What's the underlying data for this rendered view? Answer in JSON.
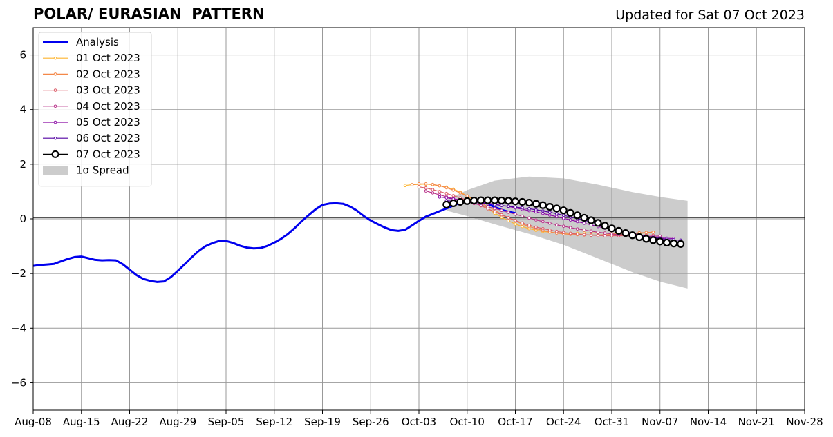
{
  "title": "POLAR/ EURASIAN  PATTERN",
  "subtitle": "Updated for Sat 07 Oct 2023",
  "chart_data": {
    "type": "line",
    "x_type": "date",
    "xlim": [
      "2023-08-08",
      "2023-11-28"
    ],
    "ylim": [
      -7,
      7
    ],
    "grid": true,
    "legend_position": "top-left",
    "x_ticks": [
      {
        "date": "2023-08-08",
        "label": "Aug-08"
      },
      {
        "date": "2023-08-15",
        "label": "Aug-15"
      },
      {
        "date": "2023-08-22",
        "label": "Aug-22"
      },
      {
        "date": "2023-08-29",
        "label": "Aug-29"
      },
      {
        "date": "2023-09-05",
        "label": "Sep-05"
      },
      {
        "date": "2023-09-12",
        "label": "Sep-12"
      },
      {
        "date": "2023-09-19",
        "label": "Sep-19"
      },
      {
        "date": "2023-09-26",
        "label": "Sep-26"
      },
      {
        "date": "2023-10-03",
        "label": "Oct-03"
      },
      {
        "date": "2023-10-10",
        "label": "Oct-10"
      },
      {
        "date": "2023-10-17",
        "label": "Oct-17"
      },
      {
        "date": "2023-10-24",
        "label": "Oct-24"
      },
      {
        "date": "2023-10-31",
        "label": "Oct-31"
      },
      {
        "date": "2023-11-07",
        "label": "Nov-07"
      },
      {
        "date": "2023-11-14",
        "label": "Nov-14"
      },
      {
        "date": "2023-11-21",
        "label": "Nov-21"
      },
      {
        "date": "2023-11-28",
        "label": "Nov-28"
      }
    ],
    "y_ticks": [
      {
        "value": 6,
        "label": "6"
      },
      {
        "value": 4,
        "label": "4"
      },
      {
        "value": 2,
        "label": "2"
      },
      {
        "value": 0,
        "label": "0"
      },
      {
        "value": -2,
        "label": "−2"
      },
      {
        "value": -4,
        "label": "−4"
      },
      {
        "value": -6,
        "label": "−6"
      }
    ],
    "series": [
      {
        "name": "Analysis",
        "color": "#0000ee",
        "style": "analysis",
        "start": "2023-08-08",
        "values": [
          -1.72,
          -1.69,
          -1.67,
          -1.65,
          -1.56,
          -1.47,
          -1.4,
          -1.38,
          -1.44,
          -1.5,
          -1.52,
          -1.51,
          -1.52,
          -1.66,
          -1.86,
          -2.06,
          -2.2,
          -2.27,
          -2.31,
          -2.29,
          -2.13,
          -1.9,
          -1.66,
          -1.41,
          -1.18,
          -1.0,
          -0.89,
          -0.81,
          -0.81,
          -0.88,
          -0.98,
          -1.05,
          -1.08,
          -1.07,
          -0.99,
          -0.87,
          -0.73,
          -0.55,
          -0.33,
          -0.08,
          0.14,
          0.35,
          0.51,
          0.56,
          0.57,
          0.55,
          0.45,
          0.3,
          0.1,
          -0.06,
          -0.19,
          -0.31,
          -0.41,
          -0.44,
          -0.4,
          -0.24,
          -0.07,
          0.08,
          0.18,
          0.28,
          0.38,
          0.49,
          0.59,
          0.66,
          0.68,
          0.64,
          0.55,
          0.43,
          0.33,
          0.26,
          0.21
        ]
      },
      {
        "name": "01 Oct 2023",
        "color": "#fdb42f",
        "style": "forecast",
        "start": "2023-10-01",
        "values": [
          1.22,
          1.25,
          1.26,
          1.27,
          1.25,
          1.21,
          1.16,
          1.09,
          0.98,
          0.84,
          0.68,
          0.52,
          0.37,
          0.21,
          0.06,
          -0.07,
          -0.19,
          -0.28,
          -0.36,
          -0.42,
          -0.46,
          -0.49,
          -0.51,
          -0.52,
          -0.53,
          -0.53,
          -0.52,
          -0.51,
          -0.51,
          -0.52,
          -0.54,
          -0.55,
          -0.56,
          -0.55,
          -0.53,
          -0.51,
          -0.49
        ]
      },
      {
        "name": "02 Oct 2023",
        "color": "#f48849",
        "style": "forecast",
        "start": "2023-10-02",
        "values": [
          1.25,
          1.28,
          1.28,
          1.26,
          1.21,
          1.14,
          1.05,
          0.95,
          0.84,
          0.72,
          0.58,
          0.45,
          0.31,
          0.17,
          0.04,
          -0.08,
          -0.19,
          -0.28,
          -0.36,
          -0.43,
          -0.48,
          -0.52,
          -0.55,
          -0.57,
          -0.58,
          -0.59,
          -0.59,
          -0.59,
          -0.58,
          -0.57,
          -0.56,
          -0.55,
          -0.53,
          -0.51,
          -0.5,
          -0.49
        ]
      },
      {
        "name": "03 Oct 2023",
        "color": "#db5c68",
        "style": "forecast",
        "start": "2023-10-03",
        "values": [
          1.17,
          1.13,
          1.07,
          1.0,
          0.93,
          0.85,
          0.77,
          0.68,
          0.58,
          0.48,
          0.37,
          0.26,
          0.15,
          0.04,
          -0.06,
          -0.15,
          -0.23,
          -0.3,
          -0.36,
          -0.41,
          -0.46,
          -0.5,
          -0.53,
          -0.56,
          -0.58,
          -0.6,
          -0.61,
          -0.62,
          -0.62,
          -0.62,
          -0.62,
          -0.61,
          -0.61,
          -0.6,
          -0.6
        ]
      },
      {
        "name": "04 Oct 2023",
        "color": "#b83289",
        "style": "forecast",
        "start": "2023-10-04",
        "values": [
          1.02,
          0.95,
          0.88,
          0.81,
          0.74,
          0.68,
          0.62,
          0.56,
          0.5,
          0.44,
          0.38,
          0.31,
          0.24,
          0.17,
          0.1,
          0.03,
          -0.04,
          -0.1,
          -0.16,
          -0.22,
          -0.27,
          -0.32,
          -0.37,
          -0.41,
          -0.45,
          -0.49,
          -0.52,
          -0.55,
          -0.58,
          -0.6,
          -0.62,
          -0.63,
          -0.64,
          -0.64,
          -0.63
        ]
      },
      {
        "name": "05 Oct 2023",
        "color": "#8b0aa5",
        "style": "forecast",
        "start": "2023-10-06",
        "values": [
          0.8,
          0.77,
          0.73,
          0.7,
          0.67,
          0.64,
          0.61,
          0.57,
          0.53,
          0.49,
          0.45,
          0.4,
          0.35,
          0.3,
          0.25,
          0.2,
          0.14,
          0.08,
          0.02,
          -0.04,
          -0.1,
          -0.16,
          -0.22,
          -0.28,
          -0.34,
          -0.4,
          -0.45,
          -0.5,
          -0.55,
          -0.6,
          -0.64,
          -0.68,
          -0.7,
          -0.71,
          -0.72
        ]
      },
      {
        "name": "06 Oct 2023",
        "color": "#5302a3",
        "style": "forecast",
        "start": "2023-10-07",
        "values": [
          0.66,
          0.65,
          0.63,
          0.62,
          0.6,
          0.57,
          0.55,
          0.52,
          0.49,
          0.46,
          0.43,
          0.4,
          0.37,
          0.33,
          0.29,
          0.24,
          0.19,
          0.13,
          0.07,
          0.01,
          -0.05,
          -0.12,
          -0.19,
          -0.26,
          -0.33,
          -0.4,
          -0.47,
          -0.53,
          -0.58,
          -0.63,
          -0.68,
          -0.72,
          -0.75,
          -0.77,
          -0.78
        ]
      },
      {
        "name": "07 Oct 2023",
        "color": "#000000",
        "style": "circles",
        "start": "2023-10-07",
        "values": [
          0.52,
          0.57,
          0.62,
          0.65,
          0.67,
          0.68,
          0.68,
          0.68,
          0.67,
          0.66,
          0.64,
          0.62,
          0.59,
          0.55,
          0.5,
          0.44,
          0.38,
          0.31,
          0.22,
          0.13,
          0.04,
          -0.05,
          -0.15,
          -0.25,
          -0.35,
          -0.44,
          -0.52,
          -0.6,
          -0.67,
          -0.73,
          -0.78,
          -0.83,
          -0.87,
          -0.9,
          -0.92
        ]
      }
    ],
    "spread": {
      "name": "1σ Spread",
      "color": "#cccccc",
      "points": [
        {
          "date": "2023-10-07",
          "upper": 0.7,
          "lower": 0.3
        },
        {
          "date": "2023-10-10",
          "upper": 1.05,
          "lower": 0.1
        },
        {
          "date": "2023-10-14",
          "upper": 1.4,
          "lower": -0.2
        },
        {
          "date": "2023-10-19",
          "upper": 1.55,
          "lower": -0.55
        },
        {
          "date": "2023-10-24",
          "upper": 1.48,
          "lower": -0.95
        },
        {
          "date": "2023-10-29",
          "upper": 1.25,
          "lower": -1.45
        },
        {
          "date": "2023-11-03",
          "upper": 0.98,
          "lower": -1.95
        },
        {
          "date": "2023-11-07",
          "upper": 0.8,
          "lower": -2.3
        },
        {
          "date": "2023-11-11",
          "upper": 0.66,
          "lower": -2.55
        }
      ]
    }
  }
}
